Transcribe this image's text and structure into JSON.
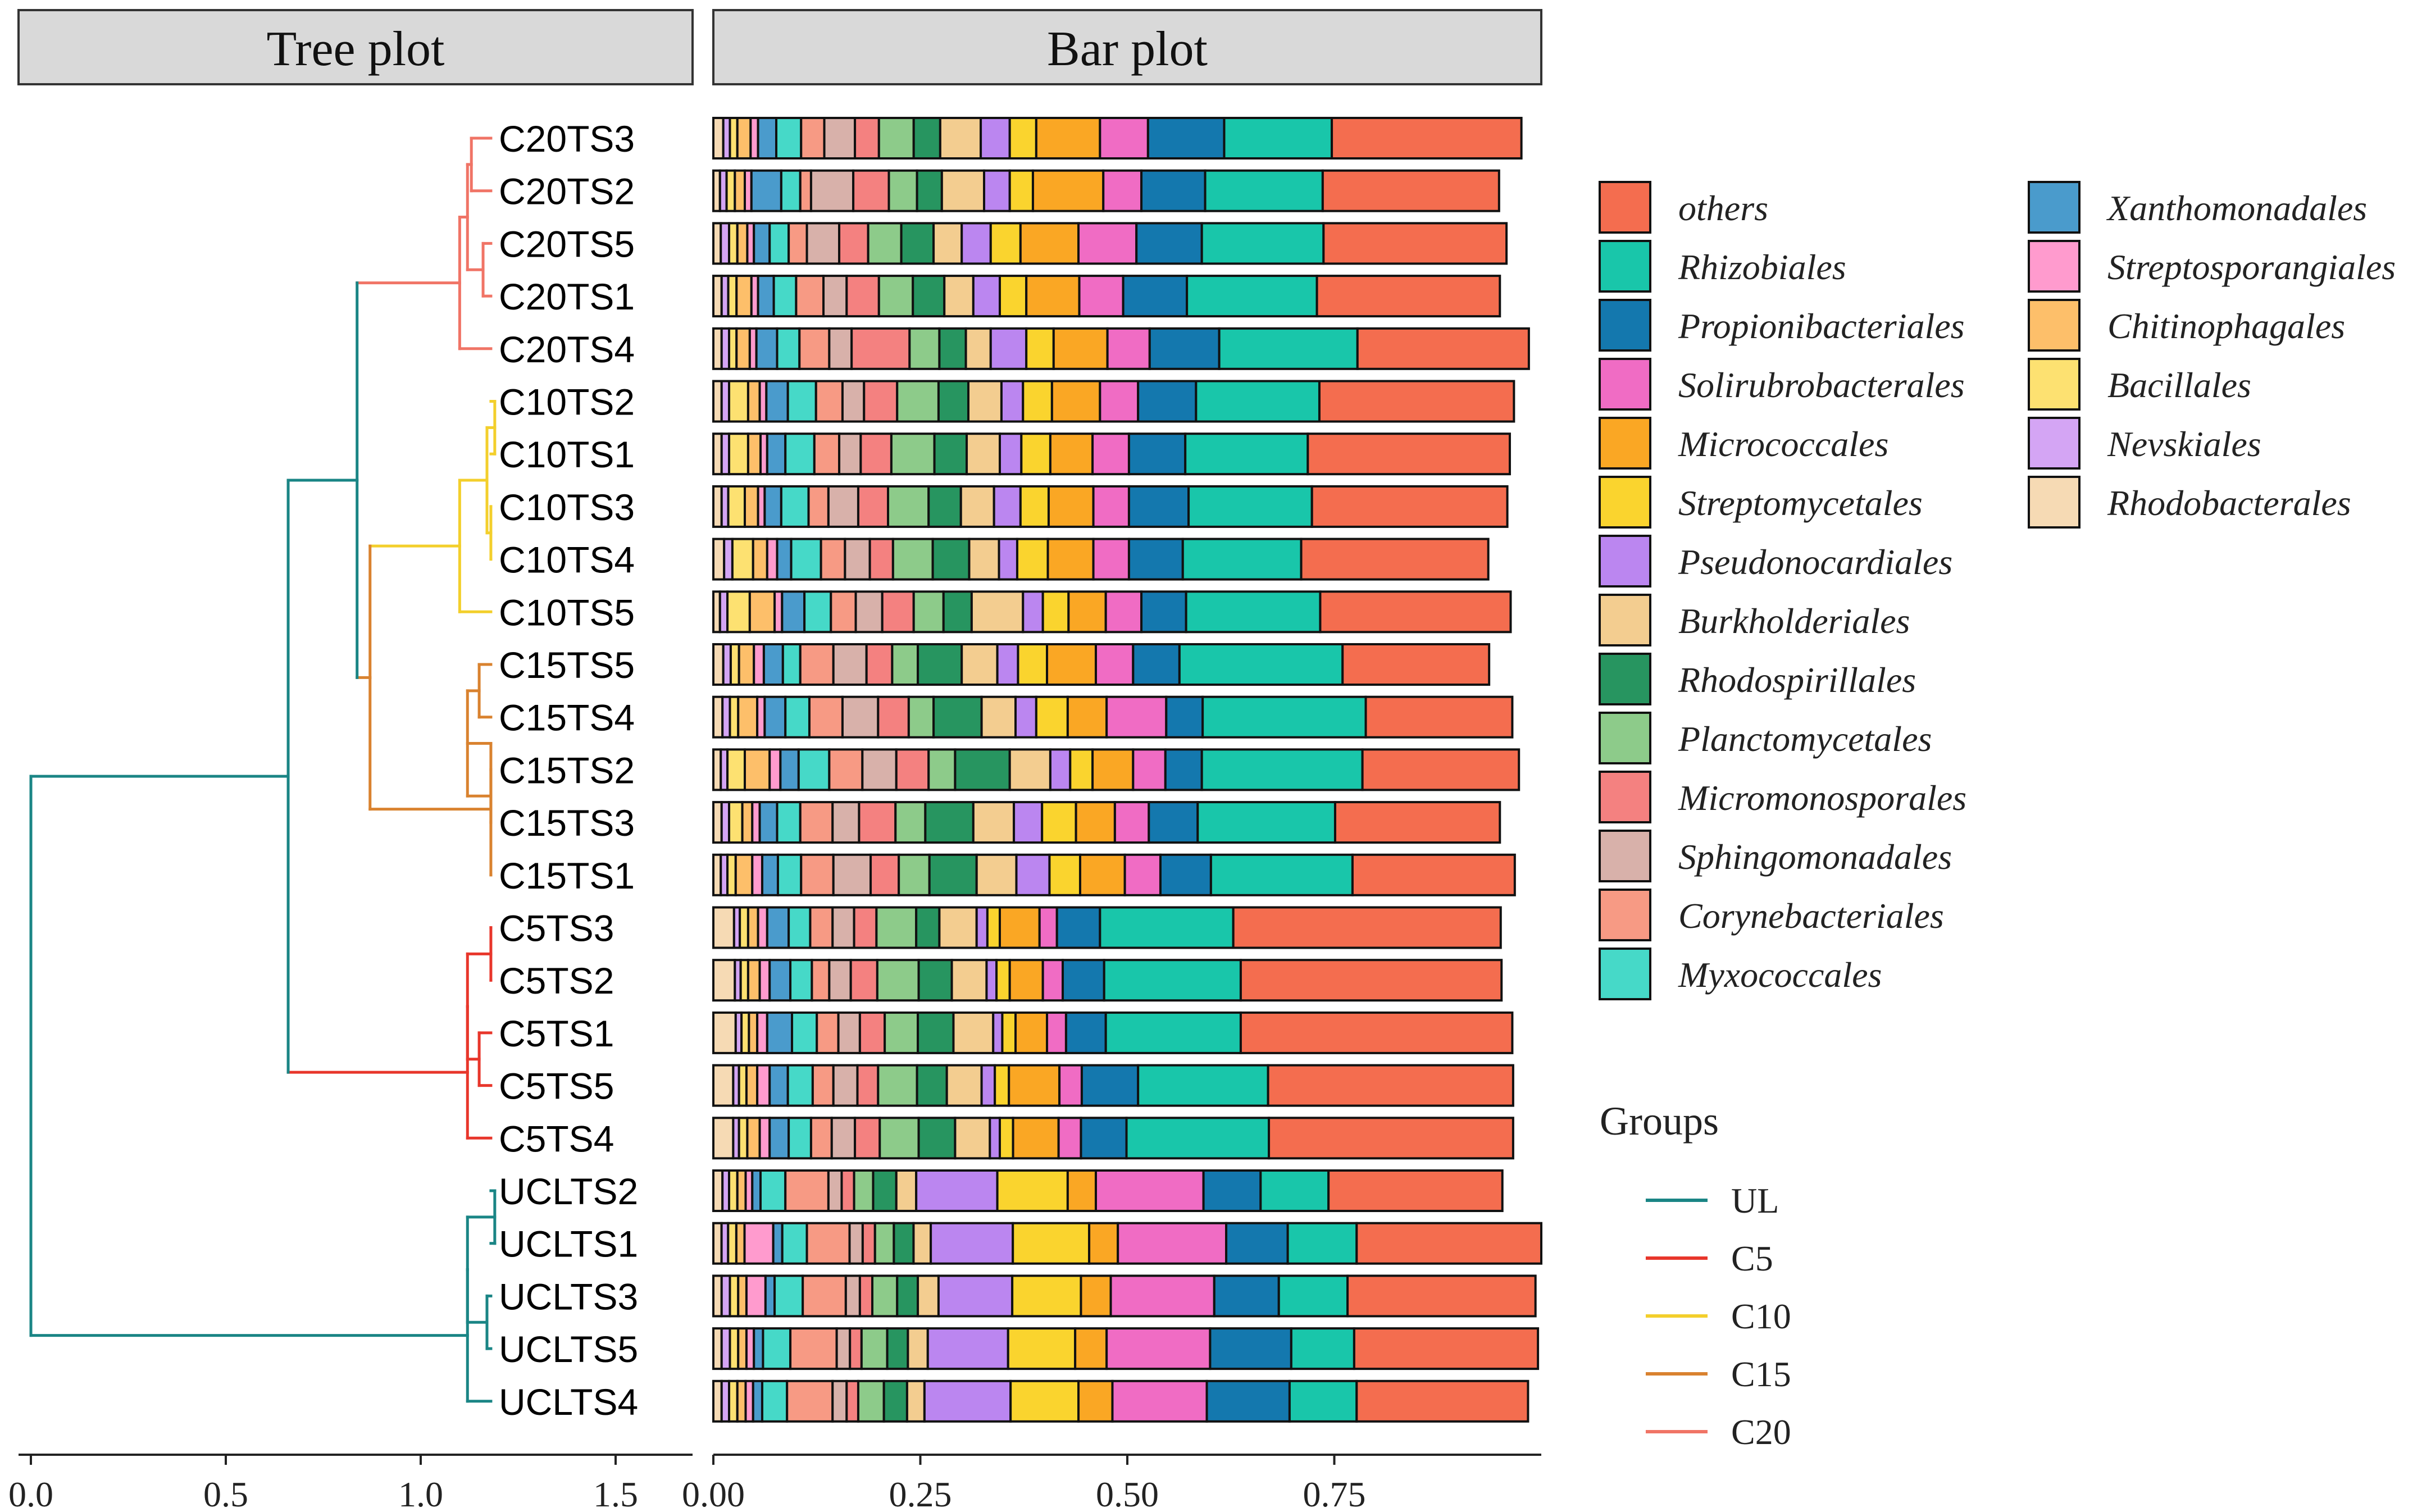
{
  "chart_data": {
    "panels": {
      "tree": {
        "title": "Tree plot",
        "x_ticks": [
          "0.0",
          "0.5",
          "1.0",
          "1.5"
        ],
        "xlim": [
          0,
          1.7
        ]
      },
      "bar": {
        "title": "Bar plot",
        "x_ticks": [
          "0.00",
          "0.25",
          "0.50",
          "0.75"
        ],
        "xlim": [
          0,
          1.0
        ]
      }
    },
    "type": "bar",
    "orientation": "horizontal-stacked",
    "samples": [
      "C20TS3",
      "C20TS2",
      "C20TS5",
      "C20TS1",
      "C20TS4",
      "C10TS2",
      "C10TS1",
      "C10TS3",
      "C10TS4",
      "C10TS5",
      "C15TS5",
      "C15TS4",
      "C15TS2",
      "C15TS3",
      "C15TS1",
      "C5TS3",
      "C5TS2",
      "C5TS1",
      "C5TS5",
      "C5TS4",
      "UCLTS2",
      "UCLTS1",
      "UCLTS3",
      "UCLTS5",
      "UCLTS4"
    ],
    "sample_groups": [
      "C20",
      "C20",
      "C20",
      "C20",
      "C20",
      "C10",
      "C10",
      "C10",
      "C10",
      "C10",
      "C15",
      "C15",
      "C15",
      "C15",
      "C15",
      "C5",
      "C5",
      "C5",
      "C5",
      "C5",
      "UL",
      "UL",
      "UL",
      "UL",
      "UL"
    ],
    "dendrogram": {
      "tip_height": 1.18,
      "clusters": [
        {
          "group": "C20",
          "root": 1.1,
          "joins": [
            [
              0,
              1,
              1.13
            ],
            [
              2,
              3,
              1.16
            ],
            [
              "a",
              "b",
              1.12
            ],
            [
              "c",
              4,
              1.1
            ]
          ]
        },
        {
          "group": "C10",
          "root": 1.1,
          "joins": [
            [
              5,
              6,
              1.19
            ],
            [
              7,
              8,
              1.18
            ],
            [
              "a",
              "b",
              1.17
            ],
            [
              "c",
              9,
              1.1
            ]
          ]
        },
        {
          "group": "C15",
          "root": 1.18,
          "joins": [
            [
              10,
              11,
              1.15
            ],
            [
              12,
              13,
              1.18
            ],
            [
              "a",
              "b",
              1.12
            ],
            [
              "c",
              14,
              1.18
            ]
          ]
        },
        {
          "group": "C5",
          "root": 1.12,
          "joins": [
            [
              15,
              16,
              1.18
            ],
            [
              17,
              18,
              1.15
            ],
            [
              "a",
              "b",
              1.12
            ],
            [
              "c",
              19,
              1.12
            ]
          ]
        },
        {
          "group": "UL",
          "root": 1.12,
          "joins": [
            [
              20,
              21,
              1.19
            ],
            [
              22,
              23,
              1.17
            ],
            [
              "a",
              "b",
              1.12
            ],
            [
              "c",
              24,
              1.12
            ]
          ]
        }
      ],
      "upper_joins": {
        "C10_C15": 0.87,
        "C20_C10C15": 0.88,
        "C5_top": 0.66,
        "UL_all": 0.0
      }
    },
    "taxa": [
      {
        "name": "others",
        "color": "#F46D4F"
      },
      {
        "name": "Rhizobiales",
        "color": "#19C6AA"
      },
      {
        "name": "Propionibacteriales",
        "color": "#1478AE"
      },
      {
        "name": "Solirubrobacterales",
        "color": "#F06CC4"
      },
      {
        "name": "Micrococcales",
        "color": "#FAA724"
      },
      {
        "name": "Streptomycetales",
        "color": "#FAD42E"
      },
      {
        "name": "Pseudonocardiales",
        "color": "#BB86F0"
      },
      {
        "name": "Burkholderiales",
        "color": "#F3CD90"
      },
      {
        "name": "Rhodospirillales",
        "color": "#279560"
      },
      {
        "name": "Planctomycetales",
        "color": "#8DCB8A"
      },
      {
        "name": "Micromonosporales",
        "color": "#F48180"
      },
      {
        "name": "Sphingomonadales",
        "color": "#D8B1AA"
      },
      {
        "name": "Corynebacteriales",
        "color": "#F79A84"
      },
      {
        "name": "Myxococcales",
        "color": "#46D9C8"
      },
      {
        "name": "Xanthomonadales",
        "color": "#4A9BCC"
      },
      {
        "name": "Streptosporangiales",
        "color": "#FF9BCE"
      },
      {
        "name": "Chitinophagales",
        "color": "#FDBF6A"
      },
      {
        "name": "Bacillales",
        "color": "#FDE171"
      },
      {
        "name": "Nevskiales",
        "color": "#D4A5F4"
      },
      {
        "name": "Rhodobacterales",
        "color": "#F6DAB4"
      }
    ],
    "bar_order": [
      "Rhodobacterales",
      "Nevskiales",
      "Bacillales",
      "Chitinophagales",
      "Streptosporangiales",
      "Xanthomonadales",
      "Myxococcales",
      "Corynebacteriales",
      "Sphingomonadales",
      "Micromonosporales",
      "Planctomycetales",
      "Rhodospirillales",
      "Burkholderiales",
      "Pseudonocardiales",
      "Streptomycetales",
      "Micrococcales",
      "Solirubrobacterales",
      "Propionibacteriales",
      "Rhizobiales",
      "others"
    ],
    "values": [
      [
        0.012,
        0.008,
        0.009,
        0.016,
        0.009,
        0.022,
        0.03,
        0.028,
        0.037,
        0.029,
        0.042,
        0.032,
        0.049,
        0.035,
        0.032,
        0.077,
        0.058,
        0.092,
        0.13,
        0.229
      ],
      [
        0.008,
        0.008,
        0.01,
        0.012,
        0.008,
        0.036,
        0.023,
        0.013,
        0.051,
        0.043,
        0.034,
        0.03,
        0.051,
        0.031,
        0.028,
        0.085,
        0.046,
        0.077,
        0.142,
        0.213
      ],
      [
        0.009,
        0.01,
        0.01,
        0.012,
        0.008,
        0.019,
        0.023,
        0.022,
        0.039,
        0.035,
        0.04,
        0.039,
        0.034,
        0.035,
        0.036,
        0.07,
        0.07,
        0.079,
        0.147,
        0.221
      ],
      [
        0.01,
        0.008,
        0.01,
        0.018,
        0.008,
        0.019,
        0.027,
        0.033,
        0.028,
        0.039,
        0.041,
        0.038,
        0.035,
        0.032,
        0.032,
        0.064,
        0.053,
        0.077,
        0.157,
        0.221
      ],
      [
        0.01,
        0.009,
        0.009,
        0.016,
        0.008,
        0.025,
        0.027,
        0.036,
        0.027,
        0.07,
        0.036,
        0.032,
        0.03,
        0.043,
        0.033,
        0.065,
        0.051,
        0.084,
        0.167,
        0.207
      ],
      [
        0.01,
        0.009,
        0.023,
        0.014,
        0.008,
        0.026,
        0.034,
        0.032,
        0.026,
        0.04,
        0.05,
        0.036,
        0.04,
        0.026,
        0.035,
        0.058,
        0.046,
        0.07,
        0.149,
        0.235
      ],
      [
        0.01,
        0.009,
        0.023,
        0.015,
        0.008,
        0.022,
        0.035,
        0.03,
        0.026,
        0.037,
        0.052,
        0.039,
        0.04,
        0.026,
        0.035,
        0.051,
        0.044,
        0.068,
        0.148,
        0.244
      ],
      [
        0.01,
        0.008,
        0.02,
        0.016,
        0.008,
        0.02,
        0.033,
        0.024,
        0.036,
        0.036,
        0.049,
        0.039,
        0.04,
        0.032,
        0.034,
        0.054,
        0.043,
        0.072,
        0.149,
        0.236
      ],
      [
        0.013,
        0.01,
        0.025,
        0.017,
        0.012,
        0.017,
        0.036,
        0.029,
        0.03,
        0.028,
        0.048,
        0.044,
        0.036,
        0.022,
        0.037,
        0.055,
        0.043,
        0.065,
        0.143,
        0.226
      ],
      [
        0.008,
        0.009,
        0.027,
        0.03,
        0.009,
        0.027,
        0.032,
        0.03,
        0.032,
        0.038,
        0.036,
        0.034,
        0.062,
        0.024,
        0.031,
        0.045,
        0.043,
        0.054,
        0.162,
        0.23
      ],
      [
        0.012,
        0.009,
        0.01,
        0.018,
        0.012,
        0.023,
        0.021,
        0.04,
        0.04,
        0.031,
        0.031,
        0.053,
        0.043,
        0.025,
        0.035,
        0.059,
        0.045,
        0.056,
        0.197,
        0.177
      ],
      [
        0.011,
        0.009,
        0.01,
        0.023,
        0.009,
        0.025,
        0.029,
        0.04,
        0.043,
        0.037,
        0.03,
        0.058,
        0.041,
        0.025,
        0.038,
        0.047,
        0.072,
        0.044,
        0.197,
        0.177
      ],
      [
        0.009,
        0.008,
        0.021,
        0.03,
        0.013,
        0.022,
        0.037,
        0.04,
        0.041,
        0.039,
        0.032,
        0.066,
        0.049,
        0.024,
        0.027,
        0.049,
        0.039,
        0.044,
        0.194,
        0.189
      ],
      [
        0.01,
        0.009,
        0.016,
        0.012,
        0.009,
        0.021,
        0.028,
        0.039,
        0.032,
        0.044,
        0.036,
        0.058,
        0.049,
        0.034,
        0.041,
        0.047,
        0.041,
        0.059,
        0.166,
        0.199
      ],
      [
        0.009,
        0.008,
        0.01,
        0.02,
        0.012,
        0.019,
        0.028,
        0.039,
        0.045,
        0.034,
        0.037,
        0.057,
        0.048,
        0.04,
        0.037,
        0.054,
        0.043,
        0.061,
        0.171,
        0.196
      ],
      [
        0.025,
        0.007,
        0.01,
        0.012,
        0.011,
        0.026,
        0.026,
        0.027,
        0.026,
        0.027,
        0.048,
        0.028,
        0.045,
        0.013,
        0.015,
        0.048,
        0.021,
        0.052,
        0.161,
        0.323
      ],
      [
        0.026,
        0.007,
        0.009,
        0.014,
        0.012,
        0.025,
        0.026,
        0.021,
        0.026,
        0.032,
        0.05,
        0.04,
        0.042,
        0.012,
        0.016,
        0.04,
        0.024,
        0.05,
        0.165,
        0.315
      ],
      [
        0.027,
        0.007,
        0.009,
        0.01,
        0.012,
        0.03,
        0.03,
        0.026,
        0.026,
        0.03,
        0.04,
        0.043,
        0.048,
        0.011,
        0.016,
        0.038,
        0.023,
        0.048,
        0.163,
        0.328
      ],
      [
        0.024,
        0.007,
        0.009,
        0.013,
        0.015,
        0.022,
        0.03,
        0.025,
        0.029,
        0.025,
        0.047,
        0.036,
        0.042,
        0.016,
        0.017,
        0.061,
        0.027,
        0.068,
        0.157,
        0.296
      ],
      [
        0.024,
        0.007,
        0.01,
        0.015,
        0.012,
        0.023,
        0.027,
        0.025,
        0.028,
        0.03,
        0.047,
        0.044,
        0.042,
        0.012,
        0.016,
        0.055,
        0.027,
        0.055,
        0.172,
        0.295
      ],
      [
        0.011,
        0.008,
        0.01,
        0.01,
        0.008,
        0.01,
        0.03,
        0.052,
        0.016,
        0.015,
        0.023,
        0.028,
        0.024,
        0.098,
        0.085,
        0.034,
        0.13,
        0.069,
        0.082,
        0.21
      ],
      [
        0.01,
        0.008,
        0.01,
        0.01,
        0.035,
        0.011,
        0.03,
        0.052,
        0.016,
        0.015,
        0.023,
        0.024,
        0.021,
        0.1,
        0.093,
        0.035,
        0.132,
        0.075,
        0.084,
        0.225
      ],
      [
        0.01,
        0.01,
        0.01,
        0.01,
        0.023,
        0.011,
        0.034,
        0.052,
        0.017,
        0.015,
        0.03,
        0.025,
        0.025,
        0.089,
        0.083,
        0.036,
        0.125,
        0.078,
        0.083,
        0.227
      ],
      [
        0.01,
        0.01,
        0.01,
        0.01,
        0.009,
        0.011,
        0.033,
        0.056,
        0.016,
        0.014,
        0.031,
        0.025,
        0.024,
        0.097,
        0.081,
        0.038,
        0.125,
        0.098,
        0.076,
        0.222
      ],
      [
        0.01,
        0.009,
        0.01,
        0.01,
        0.009,
        0.011,
        0.03,
        0.055,
        0.017,
        0.014,
        0.031,
        0.028,
        0.021,
        0.104,
        0.082,
        0.041,
        0.114,
        0.1,
        0.081,
        0.207
      ]
    ],
    "legend_title": "Groups",
    "groups_legend": [
      {
        "name": "UL",
        "color": "#1A8585"
      },
      {
        "name": "C5",
        "color": "#E8362B"
      },
      {
        "name": "C10",
        "color": "#F3CF2C"
      },
      {
        "name": "C15",
        "color": "#D9822F"
      },
      {
        "name": "C20",
        "color": "#F07466"
      }
    ]
  }
}
